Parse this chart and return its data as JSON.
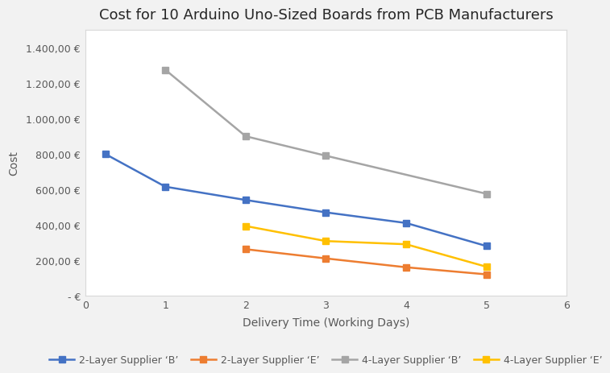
{
  "title": "Cost for 10 Arduino Uno-Sized Boards from PCB Manufacturers",
  "xlabel": "Delivery Time (Working Days)",
  "ylabel": "Cost",
  "xlim": [
    0,
    6
  ],
  "ylim": [
    0,
    1500
  ],
  "yticks": [
    0,
    200,
    400,
    600,
    800,
    1000,
    1200,
    1400
  ],
  "ytick_labels": [
    "- €",
    "200,00 €",
    "400,00 €",
    "600,00 €",
    "800,00 €",
    "1.000,00 €",
    "1.200,00 €",
    "1.400,00 €"
  ],
  "xticks": [
    0,
    1,
    2,
    3,
    4,
    5,
    6
  ],
  "series": [
    {
      "label": "2-Layer Supplier ‘B’",
      "x": [
        0.25,
        1,
        2,
        3,
        4,
        5
      ],
      "y": [
        800,
        615,
        540,
        470,
        410,
        280
      ],
      "color": "#4472C4",
      "marker": "s",
      "linewidth": 1.8,
      "markersize": 6
    },
    {
      "label": "2-Layer Supplier ‘E’",
      "x": [
        2,
        3,
        4,
        5
      ],
      "y": [
        262,
        210,
        160,
        120
      ],
      "color": "#ED7D31",
      "marker": "s",
      "linewidth": 1.8,
      "markersize": 6
    },
    {
      "label": "4-Layer Supplier ‘B’",
      "x": [
        1,
        2,
        3,
        5
      ],
      "y": [
        1275,
        900,
        790,
        575
      ],
      "color": "#A5A5A5",
      "marker": "s",
      "linewidth": 1.8,
      "markersize": 6
    },
    {
      "label": "4-Layer Supplier ‘E’",
      "x": [
        2,
        3,
        4,
        5
      ],
      "y": [
        393,
        308,
        290,
        163
      ],
      "color": "#FFC000",
      "marker": "s",
      "linewidth": 1.8,
      "markersize": 6
    }
  ],
  "background_color": "#F2F2F2",
  "plot_bg_color": "#FFFFFF",
  "grid_color": "#FFFFFF",
  "title_fontsize": 13,
  "axis_label_fontsize": 10,
  "tick_fontsize": 9,
  "legend_fontsize": 9
}
